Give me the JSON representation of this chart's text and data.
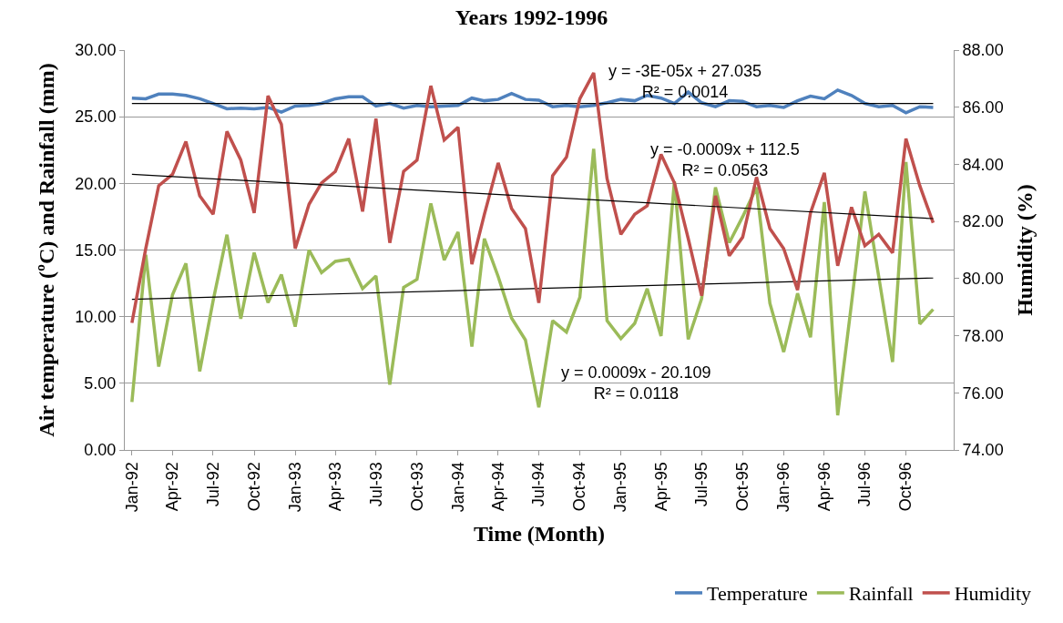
{
  "chart_data": {
    "type": "line",
    "title": "Years 1992-1996",
    "xlabel": "Time (Month)",
    "ylabel": "Air temperature (ºC) and Rainfall (mm)",
    "y2label": "Humidity (%)",
    "x": [
      "1992-01",
      "1992-02",
      "1992-03",
      "1992-04",
      "1992-05",
      "1992-06",
      "1992-07",
      "1992-08",
      "1992-09",
      "1992-10",
      "1992-11",
      "1992-12",
      "1993-01",
      "1993-02",
      "1993-03",
      "1993-04",
      "1993-05",
      "1993-06",
      "1993-07",
      "1993-08",
      "1993-09",
      "1993-10",
      "1993-11",
      "1993-12",
      "1994-01",
      "1994-02",
      "1994-03",
      "1994-04",
      "1994-05",
      "1994-06",
      "1994-07",
      "1994-08",
      "1994-09",
      "1994-10",
      "1994-11",
      "1994-12",
      "1995-01",
      "1995-02",
      "1995-03",
      "1995-04",
      "1995-05",
      "1995-06",
      "1995-07",
      "1995-08",
      "1995-09",
      "1995-10",
      "1995-11",
      "1995-12",
      "1996-01",
      "1996-02",
      "1996-03",
      "1996-04",
      "1996-05",
      "1996-06",
      "1996-07",
      "1996-08",
      "1996-09",
      "1996-10",
      "1996-11",
      "1996-12"
    ],
    "series": [
      {
        "name": "Temperature",
        "color": "#4f81bd",
        "values": [
          26.4,
          26.35,
          26.7,
          26.7,
          26.6,
          26.35,
          26.0,
          25.6,
          25.65,
          25.6,
          25.7,
          25.35,
          25.8,
          25.85,
          26.0,
          26.35,
          26.5,
          26.5,
          25.8,
          26.0,
          25.65,
          25.85,
          25.75,
          25.8,
          25.85,
          26.4,
          26.2,
          26.3,
          26.75,
          26.3,
          26.25,
          25.75,
          25.85,
          25.75,
          25.85,
          26.05,
          26.3,
          26.2,
          26.6,
          26.4,
          26.0,
          26.85,
          26.05,
          25.75,
          26.2,
          26.15,
          25.75,
          25.85,
          25.7,
          26.2,
          26.55,
          26.35,
          27.0,
          26.6,
          26.0,
          25.75,
          25.85,
          25.3,
          25.75,
          25.7
        ]
      },
      {
        "name": "Rainfall",
        "color": "#9bbb59",
        "values": [
          3.6,
          14.65,
          6.25,
          11.65,
          14.0,
          5.9,
          11.2,
          16.15,
          9.85,
          14.8,
          11.05,
          13.15,
          9.25,
          15.0,
          13.3,
          14.15,
          14.3,
          12.1,
          13.05,
          4.9,
          12.2,
          12.8,
          18.5,
          14.25,
          16.35,
          7.75,
          15.85,
          13.0,
          9.9,
          8.25,
          3.2,
          9.7,
          8.85,
          11.45,
          22.6,
          9.7,
          8.35,
          9.5,
          12.1,
          8.55,
          20.15,
          8.3,
          11.35,
          19.7,
          15.55,
          17.5,
          19.7,
          11.0,
          7.35,
          11.75,
          8.45,
          18.6,
          2.6,
          11.0,
          19.4,
          13.0,
          6.6,
          21.6,
          9.45,
          10.55
        ]
      },
      {
        "name": "Humidity",
        "color": "#c0504d",
        "axis": "y2",
        "values": [
          78.45,
          81.05,
          83.25,
          83.65,
          84.8,
          82.9,
          82.25,
          85.15,
          84.15,
          82.3,
          86.4,
          85.4,
          81.05,
          82.6,
          83.35,
          83.75,
          84.9,
          82.35,
          85.6,
          81.25,
          83.75,
          84.15,
          86.75,
          84.85,
          85.3,
          80.5,
          82.25,
          84.05,
          82.45,
          81.75,
          79.15,
          83.6,
          84.25,
          86.3,
          87.2,
          83.5,
          81.55,
          82.25,
          82.55,
          84.35,
          83.35,
          81.4,
          79.4,
          82.9,
          80.8,
          81.45,
          83.55,
          81.75,
          81.05,
          79.6,
          82.3,
          83.7,
          80.45,
          82.5,
          81.15,
          81.55,
          80.9,
          84.9,
          83.25,
          81.95
        ]
      },
      {
        "type": "line",
        "color": "#000000",
        "x": [
          "1992-01",
          "1996-12"
        ],
        "values": [
          26.0,
          26.0
        ]
      },
      {
        "type": "line",
        "color": "#000000",
        "axis": "y2",
        "x": [
          "1992-01",
          "1996-12"
        ],
        "values": [
          83.65,
          82.1
        ]
      },
      {
        "type": "line",
        "color": "#000000",
        "x": [
          "1992-01",
          "1996-12"
        ],
        "values": [
          11.3,
          12.9
        ]
      }
    ],
    "xlim": [
      "1991-12-16",
      "1997-01-16"
    ],
    "xticks": [
      {
        "value": "1992-01",
        "label": "Jan-92"
      },
      {
        "value": "1992-04",
        "label": "Apr-92"
      },
      {
        "value": "1992-07",
        "label": "Jul-92"
      },
      {
        "value": "1992-10",
        "label": "Oct-92"
      },
      {
        "value": "1993-01",
        "label": "Jan-93"
      },
      {
        "value": "1993-04",
        "label": "Apr-93"
      },
      {
        "value": "1993-07",
        "label": "Jul-93"
      },
      {
        "value": "1993-10",
        "label": "Oct-93"
      },
      {
        "value": "1994-01",
        "label": "Jan-94"
      },
      {
        "value": "1994-04",
        "label": "Apr-94"
      },
      {
        "value": "1994-07",
        "label": "Jul-94"
      },
      {
        "value": "1994-10",
        "label": "Oct-94"
      },
      {
        "value": "1995-01",
        "label": "Jan-95"
      },
      {
        "value": "1995-04",
        "label": "Apr-95"
      },
      {
        "value": "1995-07",
        "label": "Jul-95"
      },
      {
        "value": "1995-10",
        "label": "Oct-95"
      },
      {
        "value": "1996-01",
        "label": "Jan-96"
      },
      {
        "value": "1996-04",
        "label": "Apr-96"
      },
      {
        "value": "1996-07",
        "label": "Jul-96"
      },
      {
        "value": "1996-10",
        "label": "Oct-96"
      }
    ],
    "ylim": [
      0,
      30
    ],
    "yticks": [
      {
        "value": 0,
        "label": "0.00"
      },
      {
        "value": 5,
        "label": "5.00"
      },
      {
        "value": 10,
        "label": "10.00"
      },
      {
        "value": 15,
        "label": "15.00"
      },
      {
        "value": 20,
        "label": "20.00"
      },
      {
        "value": 25,
        "label": "25.00"
      },
      {
        "value": 30,
        "label": "30.00"
      }
    ],
    "y2lim": [
      74,
      88
    ],
    "y2ticks": [
      {
        "value": 74,
        "label": "74.00"
      },
      {
        "value": 76,
        "label": "76.00"
      },
      {
        "value": 78,
        "label": "78.00"
      },
      {
        "value": 80,
        "label": "80.00"
      },
      {
        "value": 82,
        "label": "82.00"
      },
      {
        "value": 84,
        "label": "84.00"
      },
      {
        "value": 86,
        "label": "86.00"
      },
      {
        "value": 88,
        "label": "88.00"
      }
    ],
    "annotations": [
      "y = -3E-05x + 27.035\nR² = 0.0014",
      "y = -0.0009x + 112.5\nR² = 0.0563",
      "y = 0.0009x - 20.109\nR² = 0.0118"
    ],
    "grid": "y",
    "legend": "bottom",
    "marker": "none",
    "line_style": "solid"
  }
}
